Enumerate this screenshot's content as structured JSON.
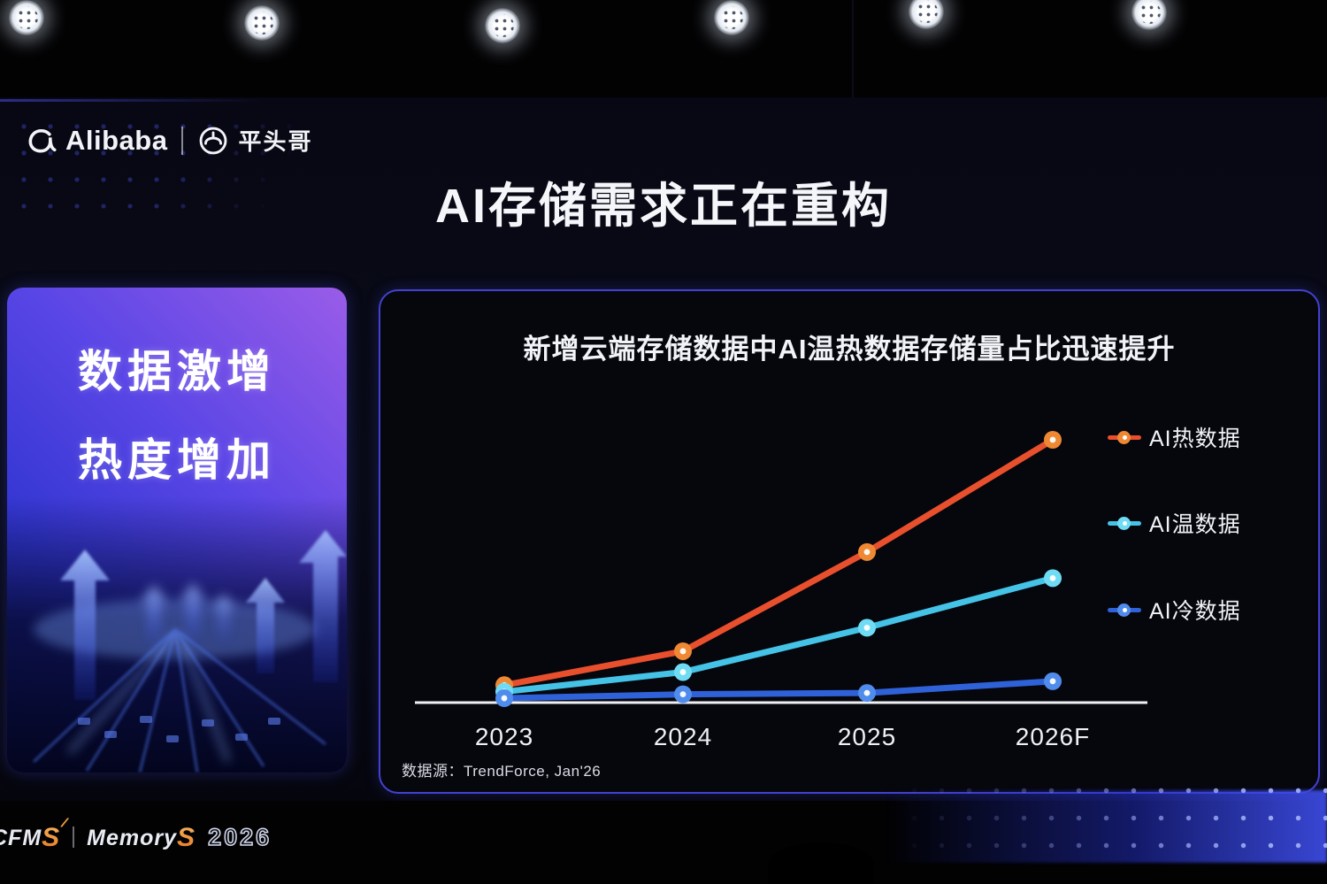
{
  "brand": {
    "alibaba": "Alibaba",
    "pingtouge": "平头哥"
  },
  "icons": {
    "alibaba_mark": "alibaba-smile-icon",
    "pingtouge_mark": "pingtouge-helmet-icon",
    "stage_lights": "stage-light-icon"
  },
  "slide": {
    "title": "AI存储需求正在重构",
    "left_panel": {
      "line1": "数据激增",
      "line2": "热度增加"
    }
  },
  "chart_data": {
    "type": "line",
    "title": "新增云端存储数据中AI温热数据存储量占比迅速提升",
    "categories": [
      "2023",
      "2024",
      "2025",
      "2026F"
    ],
    "xlabel": "",
    "ylabel": "",
    "unit": "relative storage share index (no y-axis ticks shown)",
    "ylim": [
      0,
      105
    ],
    "grid": false,
    "legend_position": "right",
    "series": [
      {
        "name": "AI热数据",
        "color": "#e84f2d",
        "dot_color": "#ef8833",
        "values": [
          6,
          19,
          57,
          100
        ]
      },
      {
        "name": "AI温数据",
        "color": "#45c3e6",
        "dot_color": "#6fdcf4",
        "values": [
          3.5,
          11,
          28,
          47
        ]
      },
      {
        "name": "AI冷数据",
        "color": "#2f62d8",
        "dot_color": "#4f8cec",
        "values": [
          1,
          2.5,
          3,
          7.5
        ]
      }
    ],
    "source": "数据源：TrendForce, Jan'26"
  },
  "footer": {
    "cfms": "CFM",
    "cfms_s": "S",
    "memory": "Memory",
    "memory_s": "S",
    "year": "2026"
  },
  "colors": {
    "panel_border": "#4242cf",
    "axis": "#eef0f4",
    "left_panel_top": "#9a5ce8",
    "left_panel_bottom": "#2028b4"
  }
}
